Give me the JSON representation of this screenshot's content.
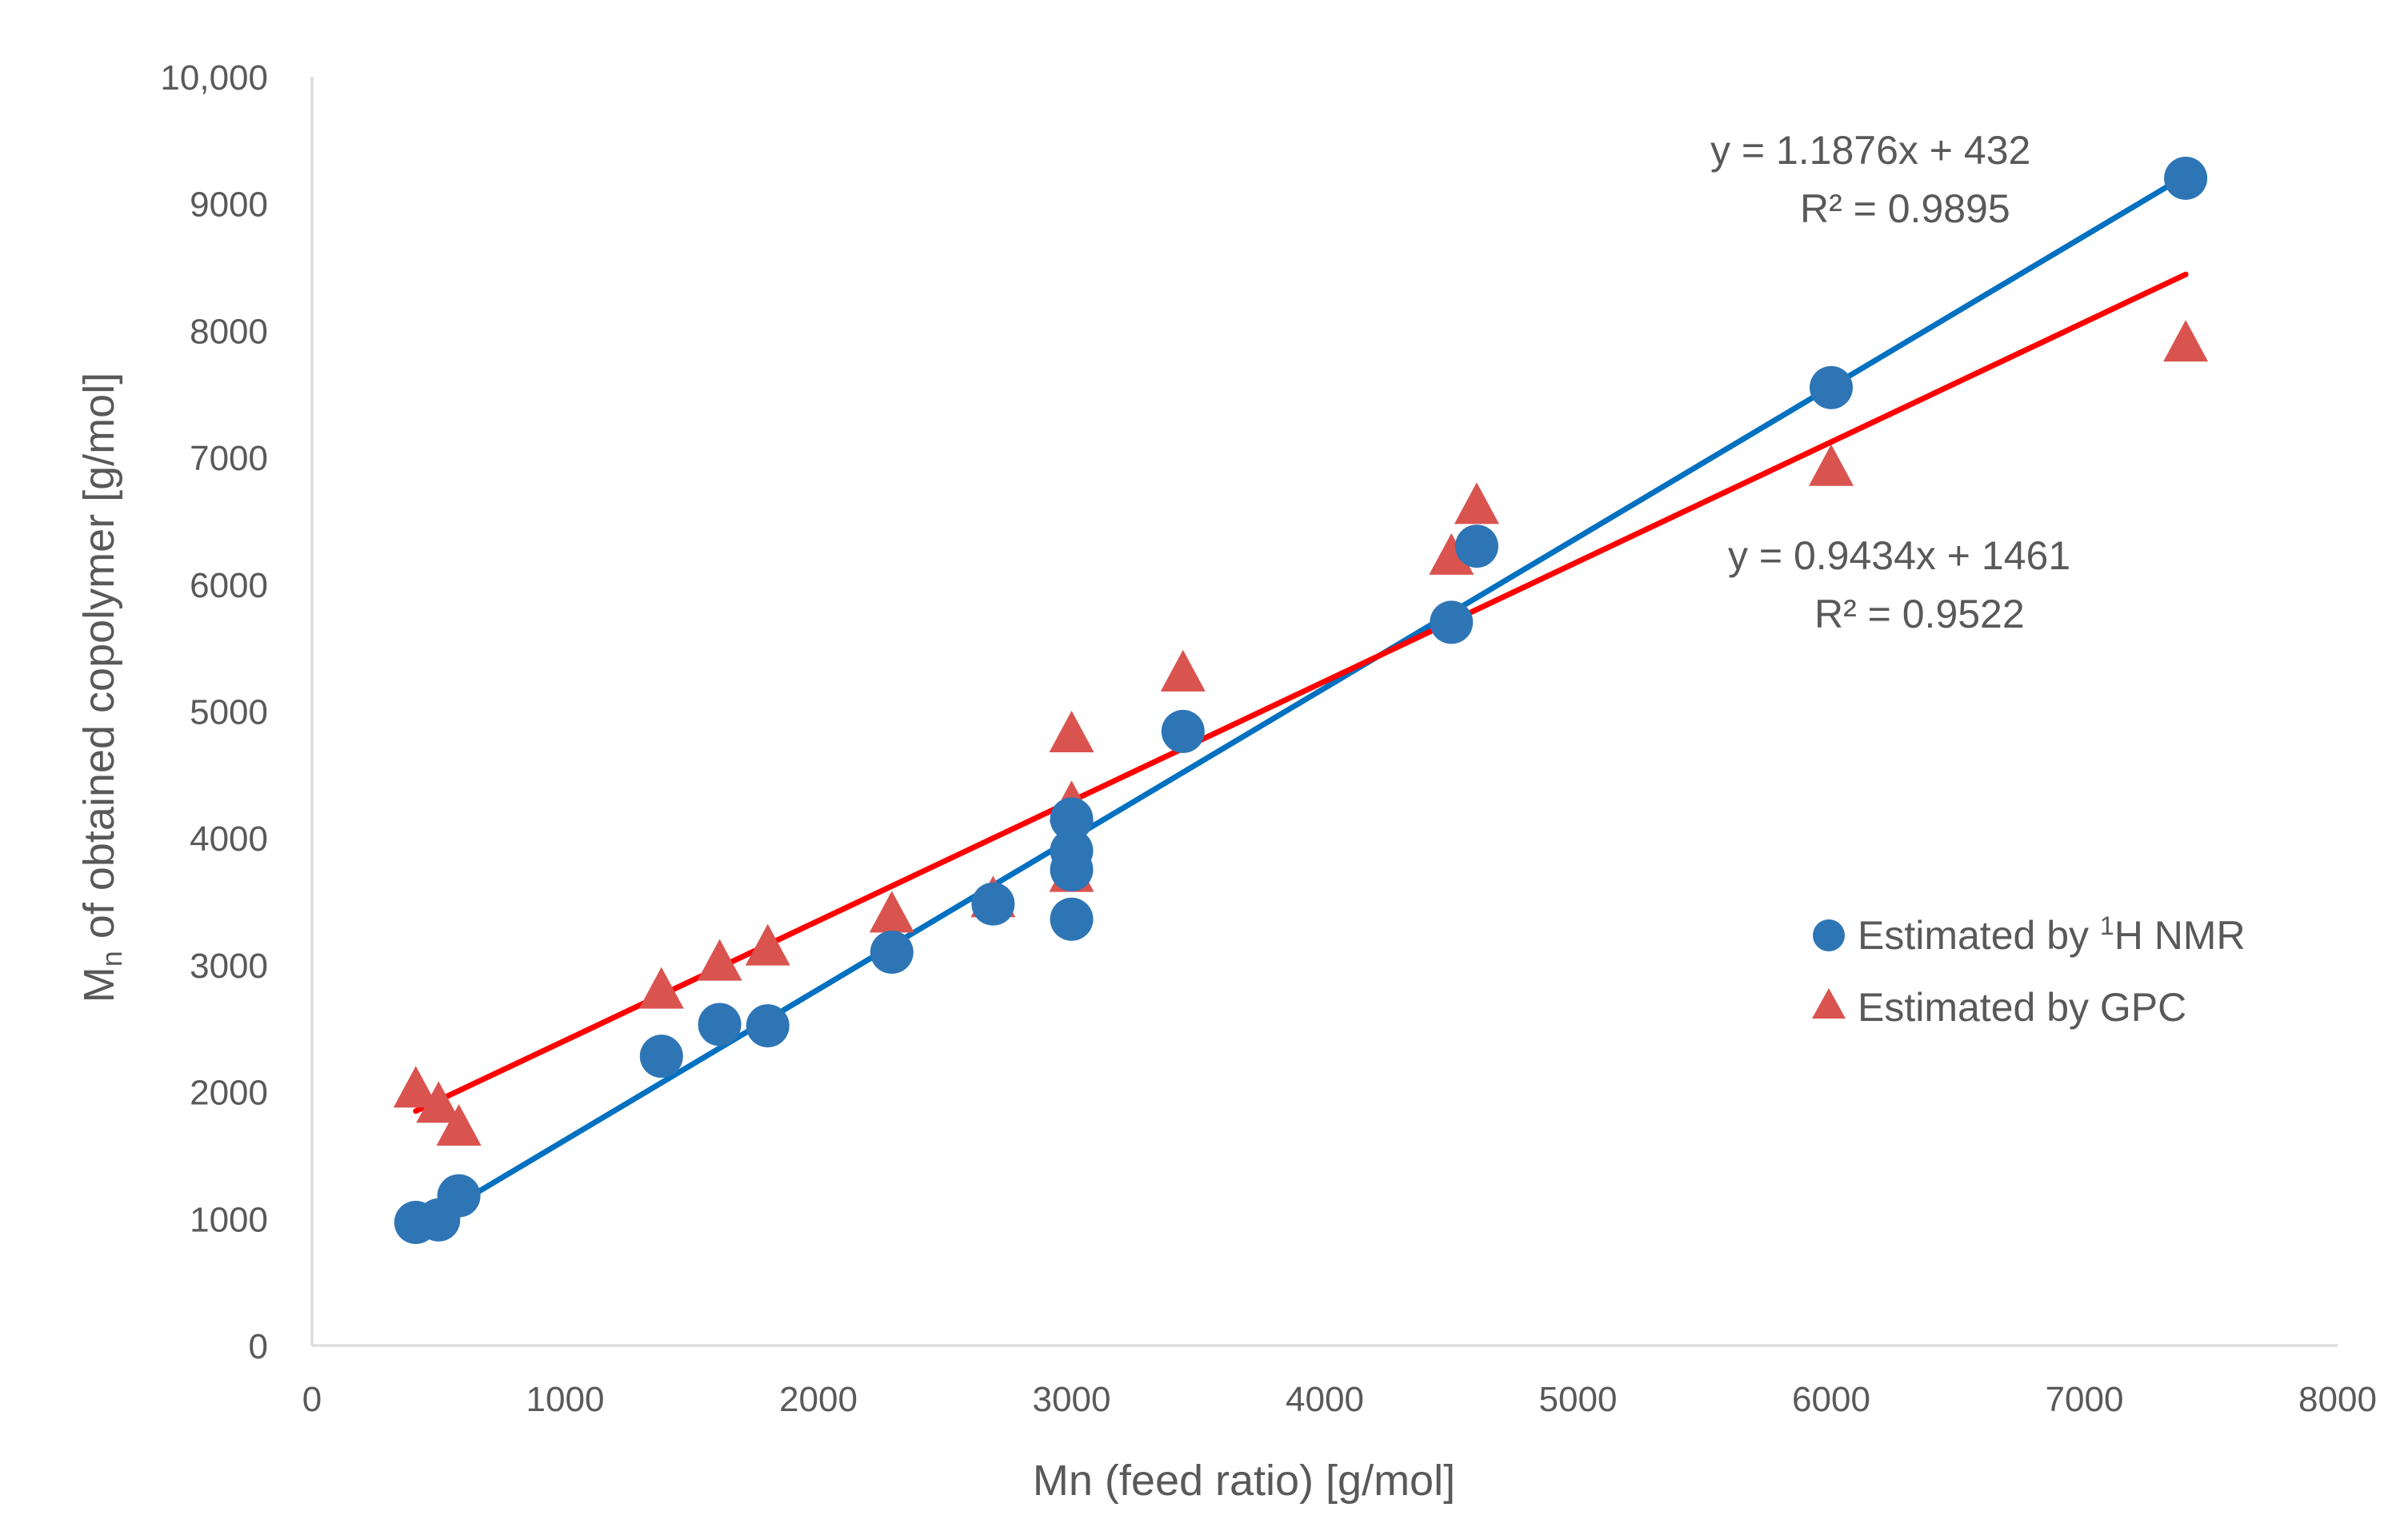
{
  "chart_data": {
    "type": "scatter",
    "xlabel": "Mn (feed ratio) [g/mol]",
    "ylabel": {
      "main": "M",
      "sub": "n",
      "rest": " of obtained copolymer [g/mol]"
    },
    "xlim": [
      0,
      8000
    ],
    "ylim": [
      0,
      10000
    ],
    "xticks": [
      0,
      1000,
      2000,
      3000,
      4000,
      5000,
      6000,
      7000,
      8000
    ],
    "xtick_labels": [
      "0",
      "1000",
      "2000",
      "3000",
      "4000",
      "5000",
      "6000",
      "7000",
      "8000"
    ],
    "yticks": [
      0,
      1000,
      2000,
      3000,
      4000,
      5000,
      6000,
      7000,
      8000,
      9000,
      10000
    ],
    "ytick_labels": [
      "0",
      "1000",
      "2000",
      "3000",
      "4000",
      "5000",
      "6000",
      "7000",
      "8000",
      "9000",
      "10,000"
    ],
    "grid": false,
    "legend_position": "right",
    "series": [
      {
        "name": "Estimated by 1H NMR",
        "legend": {
          "pre": "Estimated by ",
          "sup": "1",
          "post": "H NMR"
        },
        "marker": "circle",
        "color": "#2E75B6",
        "trend_color": "#0070C0",
        "x": [
          410,
          500,
          580,
          1380,
          1610,
          1800,
          2290,
          2690,
          3000,
          3000,
          3000,
          3000,
          3440,
          4500,
          4600,
          6000,
          7400
        ],
        "y": [
          970,
          990,
          1180,
          2280,
          2530,
          2520,
          3100,
          3480,
          3360,
          3750,
          3900,
          4150,
          4840,
          5700,
          6300,
          7550,
          9200
        ],
        "trendline": {
          "slope": 1.1876,
          "intercept": 432,
          "x_range": [
            410,
            7400
          ],
          "equation": "y = 1.1876x + 432",
          "r2": "R² = 0.9895"
        }
      },
      {
        "name": "Estimated by GPC",
        "legend": {
          "pre": "Estimated by GPC",
          "sup": "",
          "post": ""
        },
        "marker": "triangle",
        "color": "#D9534F",
        "trend_color": "#FF0000",
        "x": [
          410,
          500,
          580,
          1380,
          1610,
          1800,
          2290,
          2690,
          3000,
          3000,
          3000,
          3440,
          4500,
          4600,
          6000,
          7400
        ],
        "y": [
          2000,
          1880,
          1700,
          2780,
          3000,
          3120,
          3380,
          3500,
          3700,
          4250,
          4800,
          5280,
          6200,
          6600,
          6900,
          7880
        ],
        "trendline": {
          "slope": 0.9434,
          "intercept": 1461,
          "x_range": [
            410,
            7400
          ],
          "equation": "y = 0.9434x + 1461",
          "r2": "R² = 0.9522"
        }
      }
    ]
  }
}
